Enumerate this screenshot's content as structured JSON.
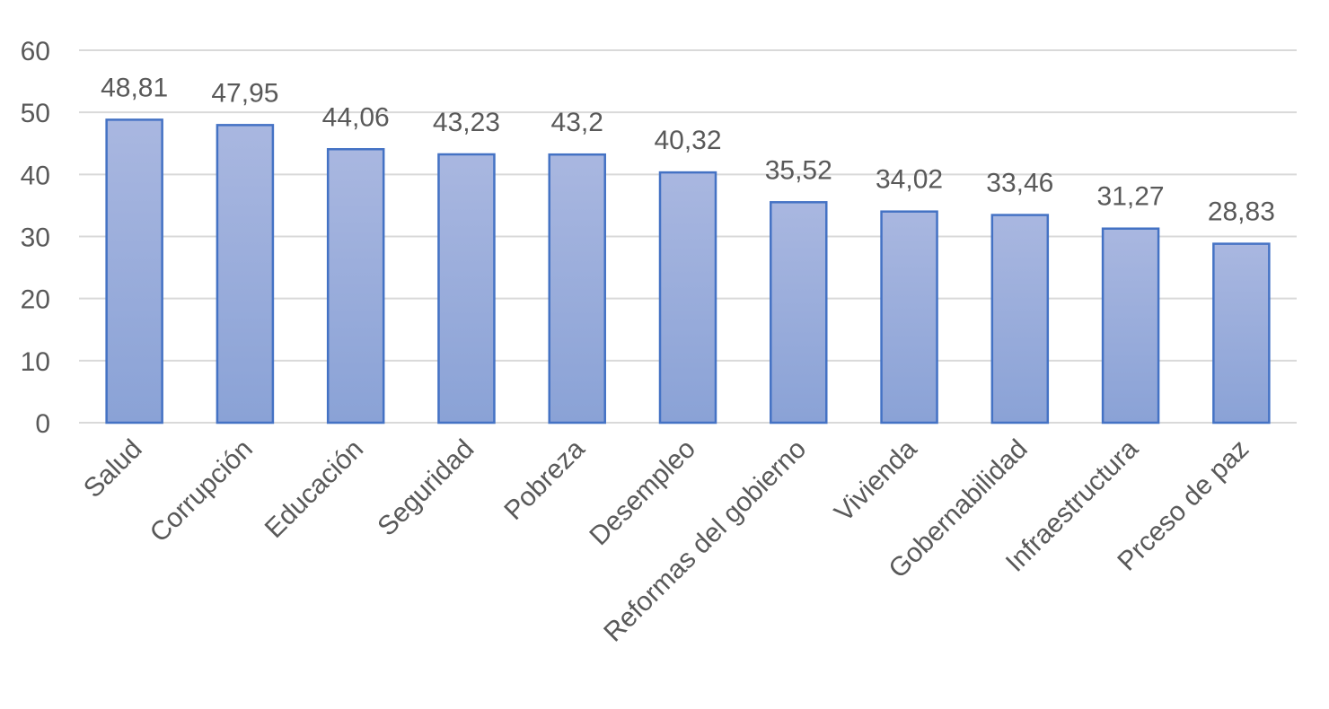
{
  "chart_data": {
    "type": "bar",
    "title": "",
    "xlabel": "",
    "ylabel": "",
    "categories": [
      "Salud",
      "Corrupción",
      "Educación",
      "Seguridad",
      "Pobreza",
      "Desempleo",
      "Reformas del gobierno",
      "Vivienda",
      "Gobernabilidad",
      "Infraestructura",
      "Prceso de paz"
    ],
    "values": [
      48.81,
      47.95,
      44.06,
      43.23,
      43.2,
      40.32,
      35.52,
      34.02,
      33.46,
      31.27,
      28.83
    ],
    "data_labels": [
      "48,81",
      "47,95",
      "44,06",
      "43,23",
      "43,2",
      "40,32",
      "35,52",
      "34,02",
      "33,46",
      "31,27",
      "28,83"
    ],
    "ylim": [
      0,
      60
    ],
    "yticks": [
      "0",
      "10",
      "20",
      "30",
      "40",
      "50",
      "60"
    ],
    "grid": true,
    "legend": "none",
    "colors": {
      "bar_top": "#a9b7e0",
      "bar_bottom": "#8aa2d6",
      "bar_border": "#4472c4",
      "grid": "#d9d9d9",
      "text": "#595959"
    }
  }
}
